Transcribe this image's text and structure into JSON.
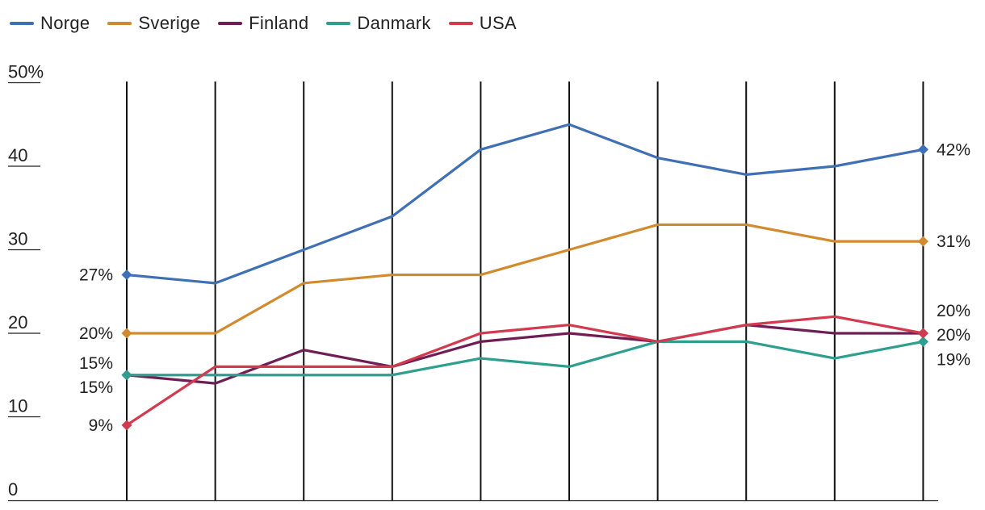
{
  "chart_data": {
    "type": "line",
    "categories": [
      "",
      "",
      "",
      "",
      "",
      "",
      "",
      "",
      "",
      ""
    ],
    "ylim": [
      0,
      50
    ],
    "y_ticks": [
      {
        "value": 0,
        "label": "0"
      },
      {
        "value": 10,
        "label": "10"
      },
      {
        "value": 20,
        "label": "20"
      },
      {
        "value": 30,
        "label": "30"
      },
      {
        "value": 40,
        "label": "40"
      },
      {
        "value": 50,
        "label": "50%"
      }
    ],
    "grid": "vertical",
    "legend_position": "top-left",
    "series": [
      {
        "name": "Norge",
        "color": "#3f6fb5",
        "values": [
          27,
          26,
          30,
          34,
          42,
          45,
          41,
          39,
          40,
          42
        ],
        "start_label": "27%",
        "end_label": "42%"
      },
      {
        "name": "Sverige",
        "color": "#d28a2e",
        "values": [
          20,
          20,
          26,
          27,
          27,
          30,
          33,
          33,
          31,
          31
        ],
        "start_label": "20%",
        "end_label": "31%"
      },
      {
        "name": "Finland",
        "color": "#6e1e55",
        "values": [
          15,
          14,
          18,
          16,
          19,
          20,
          19,
          21,
          20,
          20
        ],
        "start_label": "15%",
        "end_label": "20%"
      },
      {
        "name": "Danmark",
        "color": "#2e9e8f",
        "values": [
          15,
          15,
          15,
          15,
          17,
          16,
          19,
          19,
          17,
          19
        ],
        "start_label": "15%",
        "end_label": "19%"
      },
      {
        "name": "USA",
        "color": "#d13a4f",
        "values": [
          9,
          16,
          16,
          16,
          20,
          21,
          19,
          21,
          22,
          20
        ],
        "start_label": "9%",
        "end_label": "20%"
      }
    ]
  }
}
